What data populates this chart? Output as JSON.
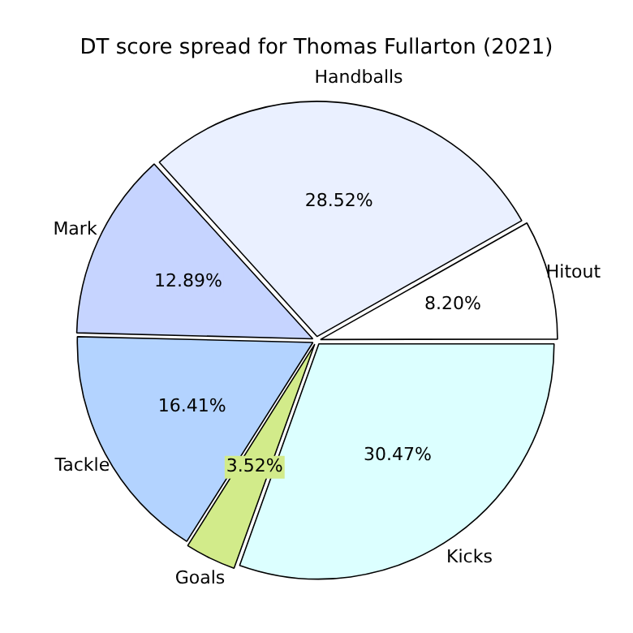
{
  "chart_data": {
    "type": "pie",
    "title": "DT score spread for Thomas Fullarton (2021)",
    "categories": [
      "Hitout",
      "Handballs",
      "Mark",
      "Tackle",
      "Goals",
      "Kicks"
    ],
    "values": [
      8.2,
      28.52,
      12.89,
      16.41,
      3.52,
      30.47
    ],
    "value_labels": [
      "8.20%",
      "28.52%",
      "12.89%",
      "16.41%",
      "3.52%",
      "30.47%"
    ],
    "colors": [
      "#ffffff",
      "#eaf0ff",
      "#c6d4ff",
      "#b3d3ff",
      "#d2eb8a",
      "#dcffff"
    ],
    "legend": false
  }
}
